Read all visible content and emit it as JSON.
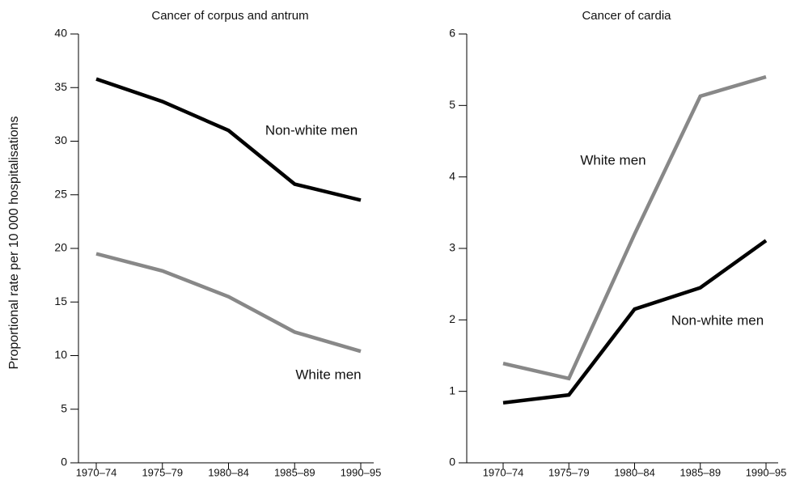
{
  "chart_data": [
    {
      "type": "line",
      "title": "Cancer of corpus and antrum",
      "y_label": "Proportional rate per 10 000 hospitalisations",
      "categories": [
        "1970–74",
        "1975–79",
        "1980–84",
        "1985–89",
        "1990–95"
      ],
      "series": [
        {
          "name": "Non-white men",
          "color": "#000000",
          "values": [
            35.8,
            33.7,
            31.0,
            26.0,
            24.5
          ]
        },
        {
          "name": "White men",
          "color": "#888888",
          "values": [
            19.5,
            17.9,
            15.5,
            12.2,
            10.4
          ]
        }
      ],
      "ylim": [
        0,
        40
      ],
      "yticks": [
        0,
        5,
        10,
        15,
        20,
        25,
        30,
        35,
        40
      ]
    },
    {
      "type": "line",
      "title": "Cancer of cardia",
      "categories": [
        "1970–74",
        "1975–79",
        "1980–84",
        "1985–89",
        "1990–95"
      ],
      "series": [
        {
          "name": "White men",
          "color": "#888888",
          "values": [
            1.39,
            1.18,
            3.2,
            5.13,
            5.4
          ]
        },
        {
          "name": "Non-white men",
          "color": "#000000",
          "values": [
            0.84,
            0.95,
            2.15,
            2.45,
            3.11
          ]
        }
      ],
      "ylim": [
        0,
        6
      ],
      "yticks": [
        0,
        1,
        2,
        3,
        4,
        5,
        6
      ]
    }
  ]
}
